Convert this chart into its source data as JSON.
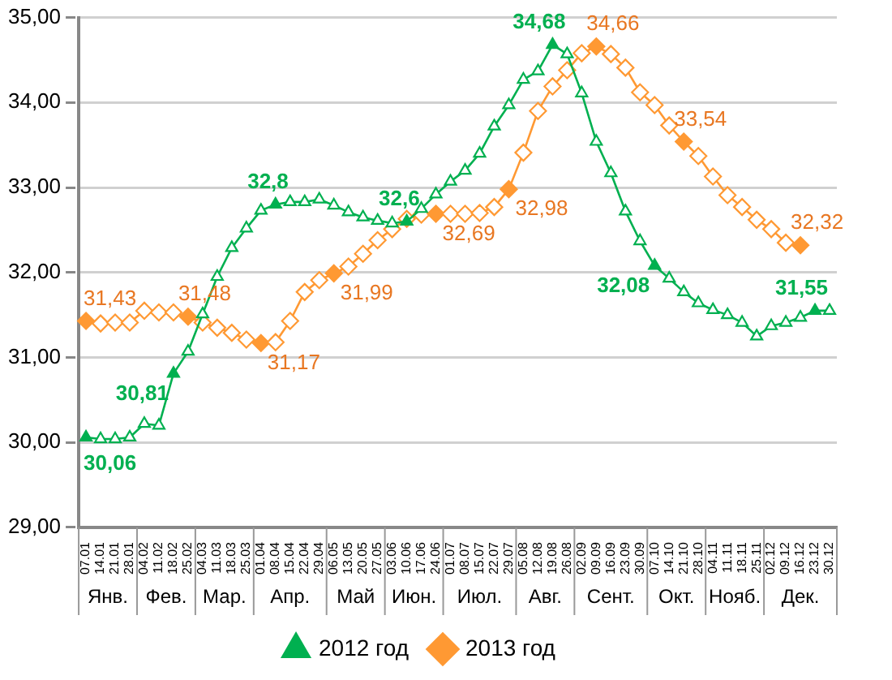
{
  "chart_data": {
    "type": "line",
    "categories": [
      "07.01",
      "14.01",
      "21.01",
      "28.01",
      "04.02",
      "11.02",
      "18.02",
      "25.02",
      "04.03",
      "11.03",
      "18.03",
      "25.03",
      "01.04",
      "08.04",
      "15.04",
      "22.04",
      "29.04",
      "06.05",
      "13.05",
      "20.05",
      "27.05",
      "03.06",
      "10.06",
      "17.06",
      "24.06",
      "01.07",
      "08.07",
      "15.07",
      "22.07",
      "29.07",
      "05.08",
      "12.08",
      "19.08",
      "26.08",
      "02.09",
      "09.09",
      "16.09",
      "23.09",
      "30.09",
      "07.10",
      "14.10",
      "21.10",
      "28.10",
      "04.11",
      "11.11",
      "18.11",
      "25.11",
      "02.12",
      "09.12",
      "16.12",
      "23.12",
      "30.12"
    ],
    "series": [
      {
        "name": "2012 год",
        "color": "#00b050",
        "marker": "triangle",
        "values": [
          30.06,
          30.04,
          30.04,
          30.06,
          30.22,
          30.2,
          30.81,
          31.07,
          31.51,
          31.95,
          32.29,
          32.52,
          32.73,
          32.8,
          32.83,
          32.83,
          32.86,
          32.79,
          32.71,
          32.65,
          32.61,
          32.58,
          32.6,
          32.75,
          32.92,
          33.07,
          33.2,
          33.4,
          33.72,
          33.97,
          34.27,
          34.37,
          34.68,
          34.57,
          34.11,
          33.54,
          33.17,
          32.72,
          32.37,
          32.08,
          31.93,
          31.77,
          31.64,
          31.56,
          31.5,
          31.41,
          31.25,
          31.37,
          31.41,
          31.47,
          31.55,
          31.55
        ],
        "value_labels": [
          "30,06",
          null,
          null,
          null,
          null,
          null,
          "30,81",
          null,
          null,
          null,
          null,
          null,
          null,
          "32,8",
          null,
          null,
          null,
          null,
          null,
          null,
          null,
          null,
          "32,6",
          null,
          null,
          null,
          null,
          null,
          null,
          null,
          null,
          null,
          "34,68",
          null,
          null,
          null,
          null,
          null,
          null,
          "32,08",
          null,
          null,
          null,
          null,
          null,
          null,
          null,
          null,
          null,
          null,
          "31,55",
          null
        ]
      },
      {
        "name": "2013 год",
        "color": "#ff9933",
        "marker": "diamond",
        "values": [
          31.43,
          31.4,
          31.41,
          31.41,
          31.55,
          31.53,
          31.53,
          31.48,
          31.41,
          31.35,
          31.29,
          31.21,
          31.17,
          31.18,
          31.43,
          31.77,
          31.91,
          31.99,
          32.07,
          32.22,
          32.38,
          32.51,
          32.63,
          32.68,
          32.69,
          32.69,
          32.69,
          32.7,
          32.77,
          32.98,
          33.41,
          33.9,
          34.19,
          34.38,
          34.58,
          34.66,
          34.57,
          34.41,
          34.12,
          33.97,
          33.73,
          33.54,
          33.37,
          33.13,
          32.91,
          32.77,
          32.62,
          32.51,
          32.35,
          32.32,
          null,
          null
        ],
        "value_labels": [
          "31,43",
          null,
          null,
          null,
          null,
          null,
          null,
          "31,48",
          null,
          null,
          null,
          null,
          "31,17",
          null,
          null,
          null,
          null,
          "31,99",
          null,
          null,
          null,
          null,
          null,
          null,
          "32,69",
          null,
          null,
          null,
          null,
          "32,98",
          null,
          null,
          null,
          null,
          null,
          "34,66",
          null,
          null,
          null,
          null,
          null,
          "33,54",
          null,
          null,
          null,
          null,
          null,
          null,
          null,
          "32,32",
          null,
          null
        ]
      }
    ],
    "ylim": [
      29,
      35
    ],
    "yticks": [
      {
        "value": 29,
        "label": "29,00"
      },
      {
        "value": 30,
        "label": "30,00"
      },
      {
        "value": 31,
        "label": "31,00"
      },
      {
        "value": 32,
        "label": "32,00"
      },
      {
        "value": 33,
        "label": "33,00"
      },
      {
        "value": 34,
        "label": "34,00"
      },
      {
        "value": 35,
        "label": "35,00"
      }
    ],
    "grid": "y",
    "legend": "bottom",
    "line_style": "solid",
    "annotations": [
      "Янв.",
      "Фев.",
      "Мар.",
      "Апр.",
      "Май",
      "Июн.",
      "Июл.",
      "Авг.",
      "Сент.",
      "Окт.",
      "Нояб.",
      "Дек."
    ]
  }
}
